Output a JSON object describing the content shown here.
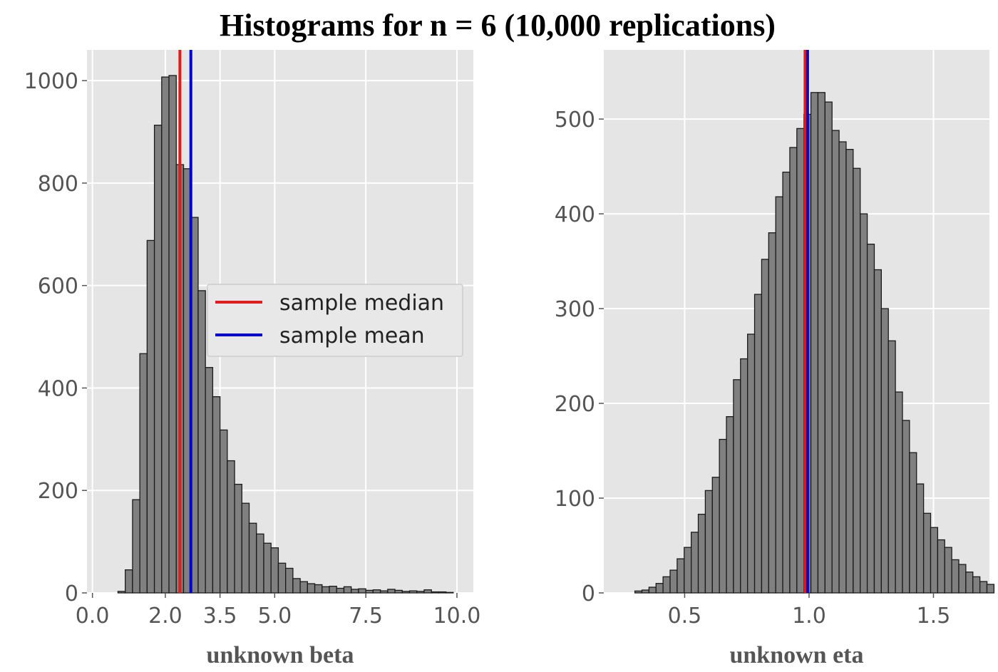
{
  "title": "Histograms for n = 6 (10,000 replications)",
  "colors": {
    "axes_bg": "#e5e5e5",
    "grid": "#ffffff",
    "bar_fill": "#808080",
    "bar_edge": "#1a1a1a",
    "tick_text": "#555555",
    "median_line": "#e41a1c",
    "mean_line": "#0000cc"
  },
  "chart_data": [
    {
      "type": "bar",
      "subtype": "histogram",
      "xlabel": "unknown beta",
      "ylabel": "",
      "xlim": [
        -0.15,
        10.45
      ],
      "ylim": [
        0,
        1060
      ],
      "xticks": [
        0.0,
        2.0,
        3.5,
        5.0,
        7.5,
        10.0
      ],
      "xtick_labels": [
        "0.0",
        "2.0",
        "3.5",
        "5.0",
        "7.5",
        "10.0"
      ],
      "yticks": [
        0,
        200,
        400,
        600,
        800,
        1000
      ],
      "ytick_labels": [
        "0",
        "200",
        "400",
        "600",
        "800",
        "1000"
      ],
      "grid": true,
      "bin_start": 0.7,
      "bin_width": 0.2,
      "counts": [
        3,
        45,
        182,
        467,
        688,
        913,
        1007,
        1010,
        836,
        828,
        733,
        590,
        440,
        383,
        318,
        258,
        212,
        175,
        136,
        115,
        97,
        88,
        58,
        48,
        28,
        22,
        18,
        16,
        12,
        13,
        9,
        12,
        7,
        8,
        5,
        6,
        4,
        7,
        5,
        3,
        4,
        3,
        6,
        2,
        2,
        1,
        0
      ],
      "vlines": [
        {
          "name": "sample median",
          "x": 2.4,
          "color": "#e41a1c"
        },
        {
          "name": "sample mean",
          "x": 2.7,
          "color": "#0000cc"
        }
      ],
      "legend": {
        "placement": "center-right",
        "entries": [
          "sample median",
          "sample mean"
        ]
      }
    },
    {
      "type": "bar",
      "subtype": "histogram",
      "xlabel": "unknown eta",
      "ylabel": "",
      "xlim": [
        0.175,
        1.725
      ],
      "ylim": [
        0,
        573
      ],
      "xticks": [
        0.5,
        1.0,
        1.5
      ],
      "xtick_labels": [
        "0.5",
        "1.0",
        "1.5"
      ],
      "yticks": [
        0,
        100,
        200,
        300,
        400,
        500
      ],
      "ytick_labels": [
        "0",
        "100",
        "200",
        "300",
        "400",
        "500"
      ],
      "grid": true,
      "bin_start": 0.3,
      "bin_width": 0.0283,
      "counts": [
        2,
        3,
        6,
        10,
        17,
        24,
        36,
        48,
        64,
        83,
        108,
        122,
        162,
        186,
        225,
        247,
        273,
        315,
        352,
        380,
        418,
        444,
        470,
        490,
        505,
        528,
        528,
        518,
        488,
        476,
        468,
        448,
        400,
        368,
        341,
        300,
        266,
        212,
        182,
        148,
        115,
        84,
        69,
        56,
        48,
        35,
        30,
        22,
        17,
        12,
        9
      ],
      "vlines": [
        {
          "name": "sample median",
          "x": 0.984,
          "color": "#e41a1c"
        },
        {
          "name": "sample mean",
          "x": 0.994,
          "color": "#0000cc"
        }
      ]
    }
  ]
}
